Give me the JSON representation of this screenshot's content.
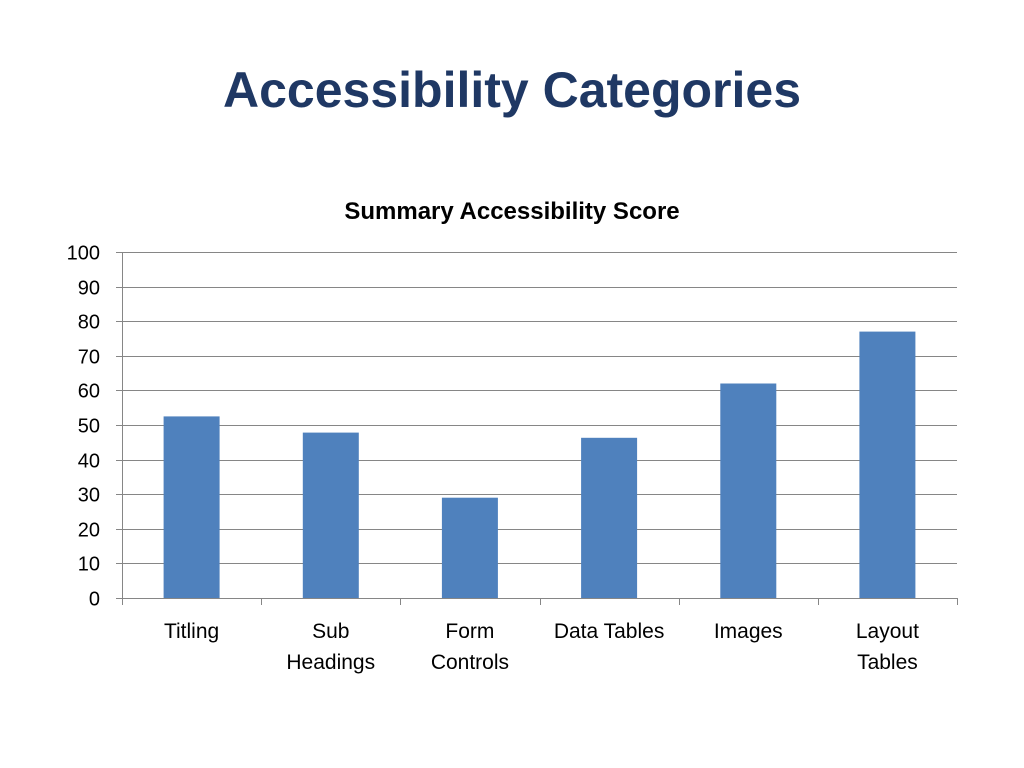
{
  "slide": {
    "title": "Accessibility Categories"
  },
  "chart_data": {
    "type": "bar",
    "title": "Summary Accessibility Score",
    "categories": [
      "Titling",
      "Sub Headings",
      "Form Controls",
      "Data Tables",
      "Images",
      "Layout Tables"
    ],
    "category_lines": [
      [
        "Titling"
      ],
      [
        "Sub",
        "Headings"
      ],
      [
        "Form",
        "Controls"
      ],
      [
        "Data Tables"
      ],
      [
        "Images"
      ],
      [
        "Layout",
        "Tables"
      ]
    ],
    "values": [
      52.5,
      47.8,
      29,
      46.3,
      62,
      77
    ],
    "ylim": [
      0,
      100
    ],
    "yticks": [
      0,
      10,
      20,
      30,
      40,
      50,
      60,
      70,
      80,
      90,
      100
    ],
    "xlabel": "",
    "ylabel": "",
    "grid": true,
    "legend": "none",
    "colors": {
      "bar": "#4f81bd",
      "grid": "#868686",
      "axis": "#868686"
    }
  }
}
